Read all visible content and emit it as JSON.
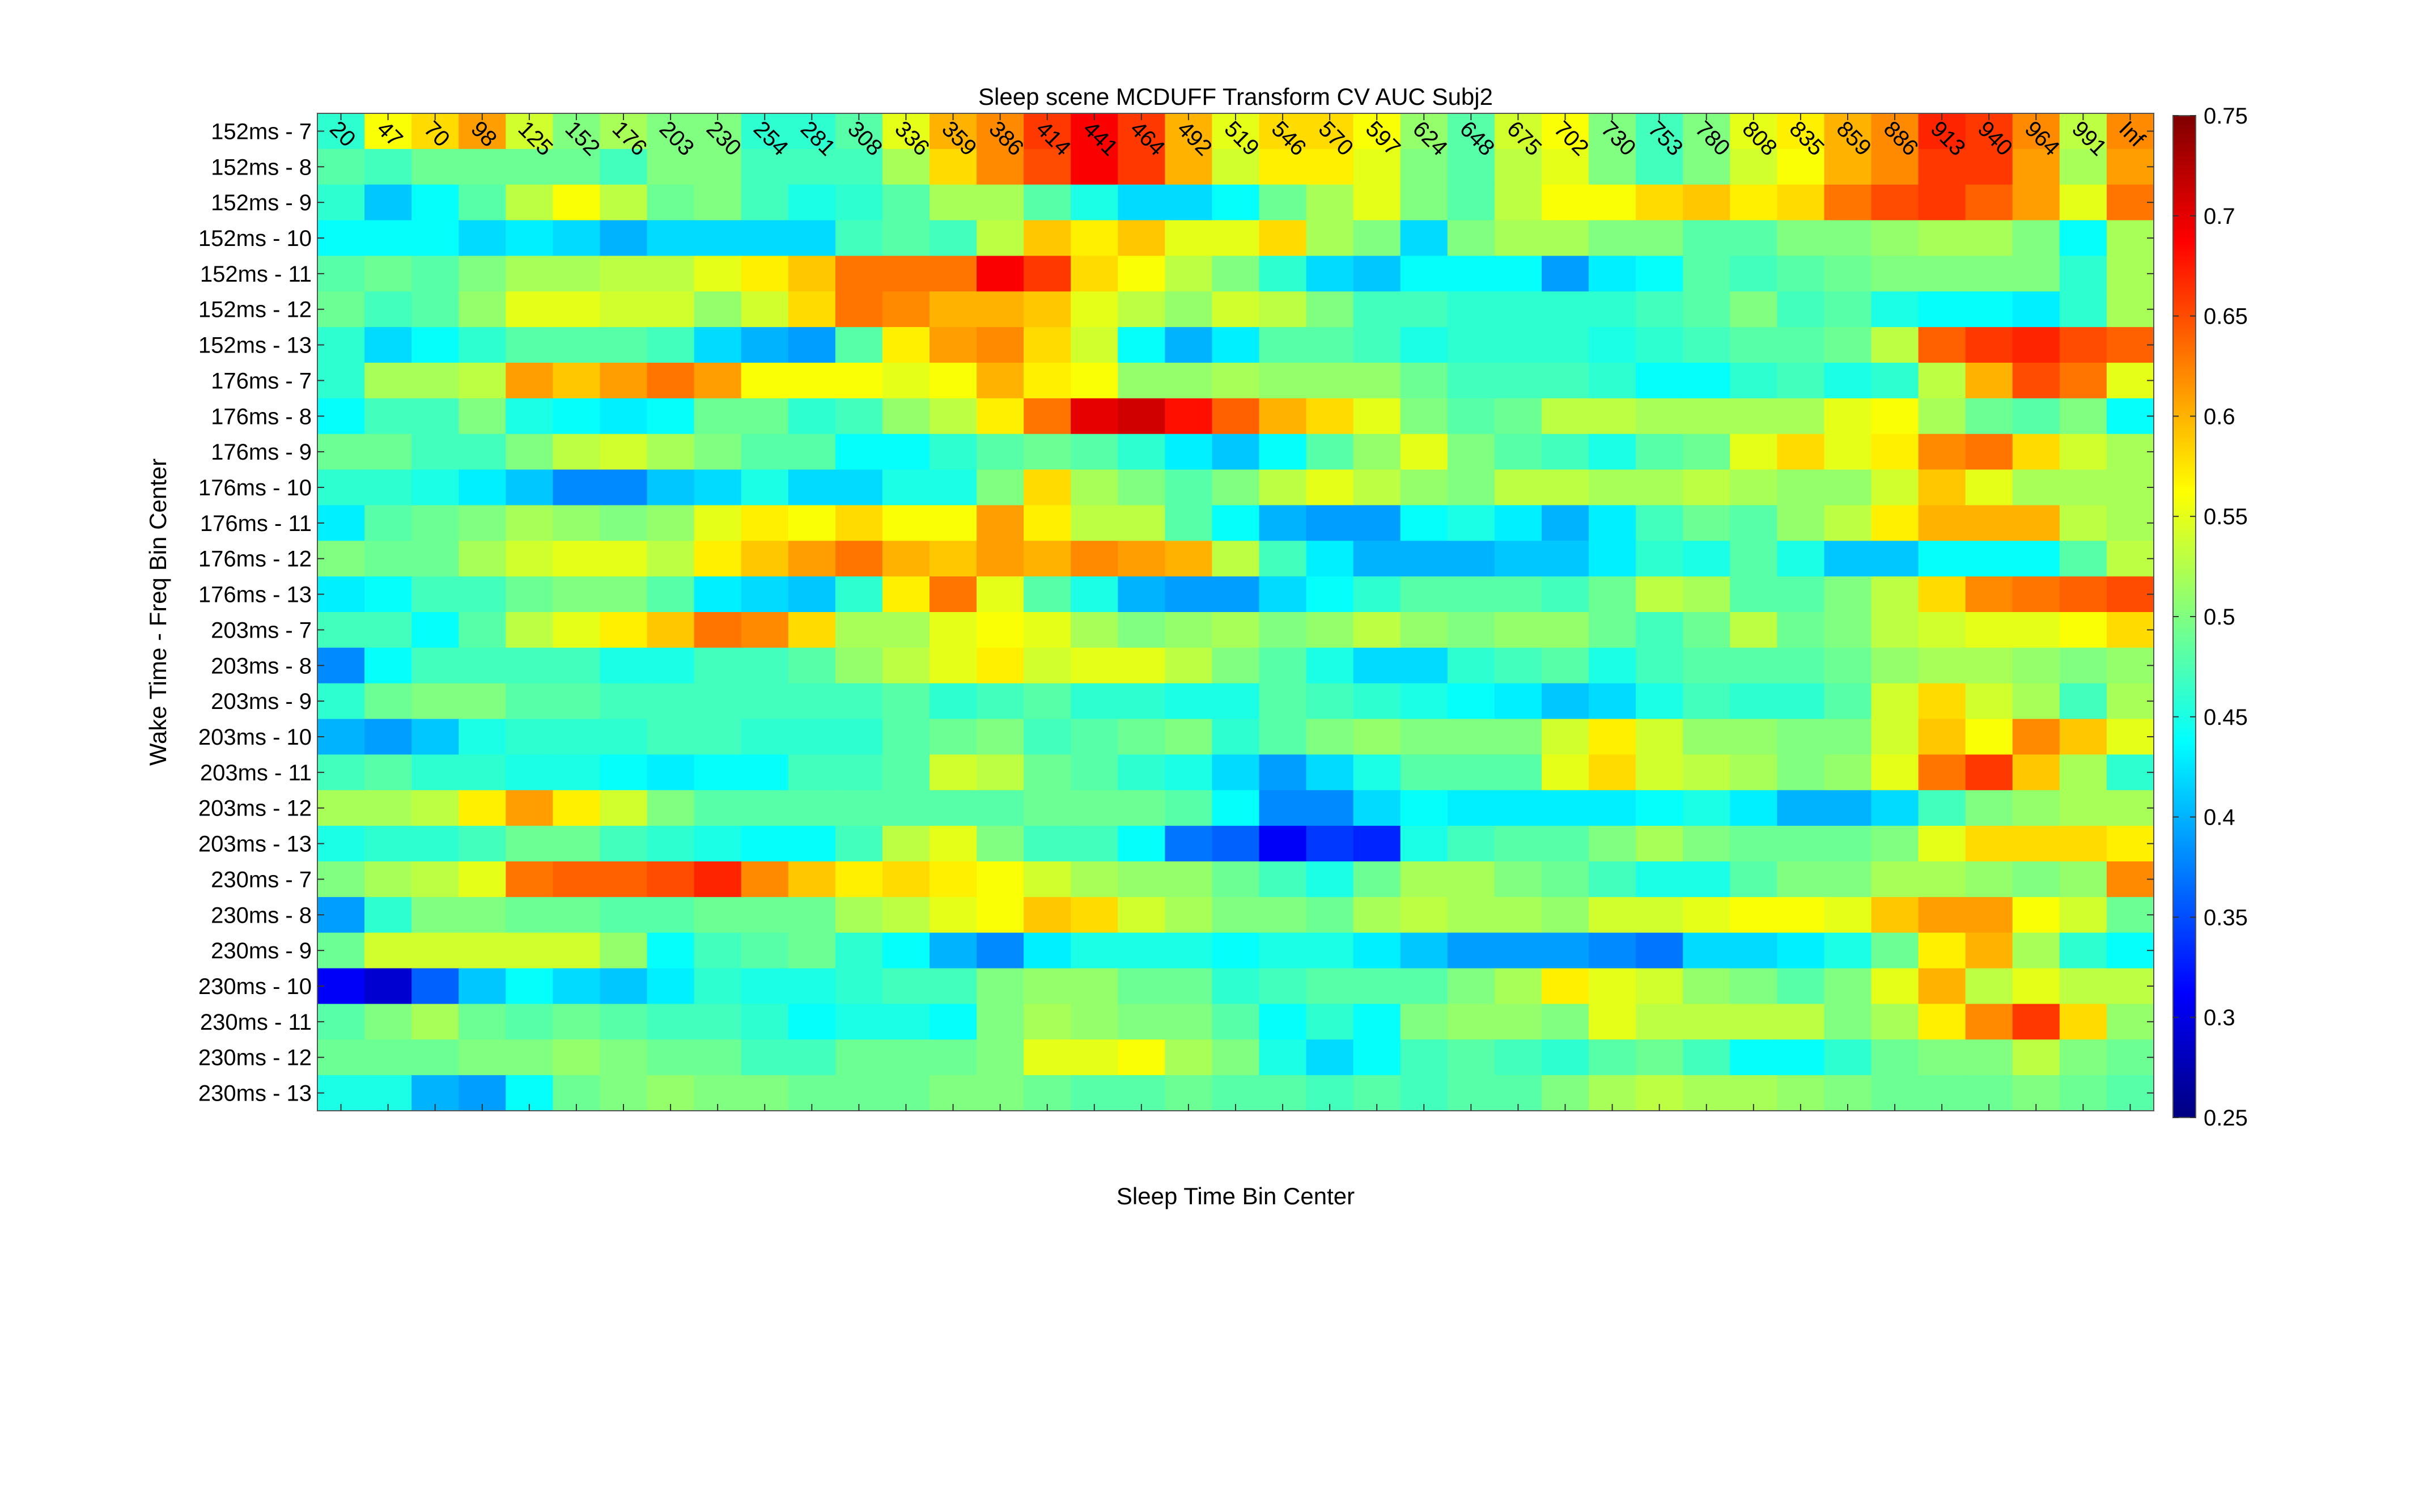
{
  "chart_data": {
    "type": "heatmap",
    "title": "Sleep scene MCDUFF Transform CV AUC Subj2",
    "xlabel": "Sleep Time Bin Center",
    "ylabel": "Wake Time - Freq Bin Center",
    "x_tick_labels": [
      "20",
      "47",
      "70",
      "98",
      "125",
      "152",
      "176",
      "203",
      "230",
      "254",
      "281",
      "308",
      "336",
      "359",
      "386",
      "414",
      "441",
      "464",
      "492",
      "519",
      "546",
      "570",
      "597",
      "624",
      "648",
      "675",
      "702",
      "730",
      "753",
      "780",
      "808",
      "835",
      "859",
      "886",
      "913",
      "940",
      "964",
      "991",
      "Inf"
    ],
    "y_tick_labels": [
      "152ms - 7",
      "152ms - 8",
      "152ms - 9",
      "152ms - 10",
      "152ms - 11",
      "152ms - 12",
      "152ms - 13",
      "176ms - 7",
      "176ms - 8",
      "176ms - 9",
      "176ms - 10",
      "176ms - 11",
      "176ms - 12",
      "176ms - 13",
      "203ms - 7",
      "203ms - 8",
      "203ms - 9",
      "203ms - 10",
      "203ms - 11",
      "203ms - 12",
      "203ms - 13",
      "230ms - 7",
      "230ms - 8",
      "230ms - 9",
      "230ms - 10",
      "230ms - 11",
      "230ms - 12",
      "230ms - 13"
    ],
    "colorbar": {
      "colormap": "jet",
      "range": [
        0.25,
        0.75
      ],
      "tick_labels": [
        "0.25",
        "0.3",
        "0.35",
        "0.4",
        "0.45",
        "0.5",
        "0.55",
        "0.6",
        "0.65",
        "0.7",
        "0.75"
      ]
    },
    "grid": false,
    "values": [
      [
        0.46,
        0.56,
        0.58,
        0.61,
        0.54,
        0.5,
        0.52,
        0.5,
        0.5,
        0.46,
        0.46,
        0.48,
        0.55,
        0.6,
        0.62,
        0.66,
        0.69,
        0.66,
        0.6,
        0.55,
        0.58,
        0.58,
        0.56,
        0.51,
        0.48,
        0.54,
        0.56,
        0.5,
        0.47,
        0.5,
        0.55,
        0.57,
        0.6,
        0.62,
        0.67,
        0.66,
        0.62,
        0.53,
        0.62
      ],
      [
        0.48,
        0.47,
        0.49,
        0.49,
        0.49,
        0.49,
        0.47,
        0.5,
        0.5,
        0.47,
        0.47,
        0.47,
        0.52,
        0.58,
        0.62,
        0.65,
        0.69,
        0.66,
        0.6,
        0.54,
        0.57,
        0.57,
        0.55,
        0.5,
        0.48,
        0.53,
        0.55,
        0.5,
        0.47,
        0.5,
        0.54,
        0.56,
        0.6,
        0.62,
        0.66,
        0.66,
        0.61,
        0.52,
        0.61
      ],
      [
        0.46,
        0.41,
        0.44,
        0.48,
        0.53,
        0.56,
        0.53,
        0.49,
        0.5,
        0.47,
        0.45,
        0.46,
        0.48,
        0.52,
        0.52,
        0.48,
        0.45,
        0.42,
        0.42,
        0.44,
        0.49,
        0.52,
        0.55,
        0.5,
        0.48,
        0.53,
        0.56,
        0.56,
        0.58,
        0.59,
        0.57,
        0.58,
        0.63,
        0.65,
        0.66,
        0.64,
        0.61,
        0.55,
        0.63
      ],
      [
        0.44,
        0.44,
        0.44,
        0.42,
        0.43,
        0.42,
        0.4,
        0.42,
        0.42,
        0.42,
        0.42,
        0.47,
        0.48,
        0.47,
        0.53,
        0.59,
        0.57,
        0.59,
        0.55,
        0.55,
        0.58,
        0.52,
        0.5,
        0.42,
        0.5,
        0.52,
        0.52,
        0.5,
        0.5,
        0.48,
        0.48,
        0.5,
        0.5,
        0.51,
        0.52,
        0.52,
        0.5,
        0.44,
        0.52
      ],
      [
        0.48,
        0.49,
        0.48,
        0.5,
        0.52,
        0.52,
        0.53,
        0.53,
        0.55,
        0.57,
        0.59,
        0.63,
        0.63,
        0.63,
        0.69,
        0.66,
        0.58,
        0.56,
        0.53,
        0.5,
        0.46,
        0.42,
        0.41,
        0.44,
        0.44,
        0.44,
        0.39,
        0.43,
        0.44,
        0.48,
        0.47,
        0.48,
        0.49,
        0.5,
        0.5,
        0.5,
        0.5,
        0.46,
        0.52
      ],
      [
        0.49,
        0.47,
        0.48,
        0.51,
        0.55,
        0.55,
        0.54,
        0.54,
        0.51,
        0.54,
        0.58,
        0.63,
        0.62,
        0.6,
        0.6,
        0.59,
        0.55,
        0.53,
        0.51,
        0.54,
        0.53,
        0.5,
        0.47,
        0.47,
        0.46,
        0.46,
        0.46,
        0.46,
        0.47,
        0.48,
        0.5,
        0.47,
        0.48,
        0.45,
        0.44,
        0.44,
        0.43,
        0.46,
        0.52
      ],
      [
        0.46,
        0.42,
        0.44,
        0.46,
        0.48,
        0.48,
        0.48,
        0.47,
        0.42,
        0.4,
        0.39,
        0.48,
        0.57,
        0.61,
        0.62,
        0.58,
        0.54,
        0.44,
        0.4,
        0.43,
        0.48,
        0.48,
        0.47,
        0.45,
        0.46,
        0.46,
        0.46,
        0.45,
        0.46,
        0.47,
        0.48,
        0.48,
        0.49,
        0.53,
        0.64,
        0.66,
        0.67,
        0.65,
        0.64
      ],
      [
        0.46,
        0.52,
        0.52,
        0.53,
        0.61,
        0.59,
        0.61,
        0.63,
        0.61,
        0.56,
        0.56,
        0.56,
        0.55,
        0.56,
        0.6,
        0.57,
        0.56,
        0.51,
        0.51,
        0.52,
        0.51,
        0.51,
        0.51,
        0.49,
        0.47,
        0.47,
        0.47,
        0.46,
        0.44,
        0.44,
        0.46,
        0.47,
        0.45,
        0.46,
        0.53,
        0.6,
        0.65,
        0.63,
        0.55
      ],
      [
        0.44,
        0.47,
        0.47,
        0.5,
        0.45,
        0.44,
        0.43,
        0.44,
        0.49,
        0.49,
        0.46,
        0.47,
        0.51,
        0.53,
        0.57,
        0.63,
        0.7,
        0.71,
        0.68,
        0.64,
        0.6,
        0.58,
        0.55,
        0.5,
        0.48,
        0.49,
        0.53,
        0.53,
        0.52,
        0.52,
        0.52,
        0.52,
        0.55,
        0.56,
        0.52,
        0.49,
        0.48,
        0.5,
        0.44
      ],
      [
        0.49,
        0.49,
        0.47,
        0.47,
        0.5,
        0.53,
        0.54,
        0.52,
        0.5,
        0.48,
        0.48,
        0.44,
        0.44,
        0.46,
        0.48,
        0.49,
        0.48,
        0.46,
        0.43,
        0.41,
        0.44,
        0.48,
        0.51,
        0.55,
        0.5,
        0.48,
        0.47,
        0.45,
        0.48,
        0.49,
        0.55,
        0.58,
        0.55,
        0.57,
        0.62,
        0.63,
        0.58,
        0.54,
        0.52
      ],
      [
        0.46,
        0.46,
        0.45,
        0.43,
        0.41,
        0.38,
        0.38,
        0.41,
        0.42,
        0.45,
        0.42,
        0.42,
        0.45,
        0.45,
        0.5,
        0.58,
        0.52,
        0.5,
        0.48,
        0.5,
        0.53,
        0.55,
        0.53,
        0.51,
        0.5,
        0.53,
        0.53,
        0.52,
        0.52,
        0.53,
        0.52,
        0.51,
        0.51,
        0.54,
        0.59,
        0.55,
        0.52,
        0.52,
        0.52
      ],
      [
        0.43,
        0.48,
        0.49,
        0.5,
        0.52,
        0.51,
        0.5,
        0.51,
        0.55,
        0.57,
        0.56,
        0.58,
        0.56,
        0.56,
        0.61,
        0.57,
        0.53,
        0.53,
        0.48,
        0.44,
        0.4,
        0.39,
        0.39,
        0.44,
        0.45,
        0.43,
        0.4,
        0.43,
        0.47,
        0.49,
        0.48,
        0.51,
        0.53,
        0.57,
        0.6,
        0.6,
        0.6,
        0.53,
        0.52
      ],
      [
        0.5,
        0.49,
        0.49,
        0.52,
        0.54,
        0.55,
        0.55,
        0.53,
        0.57,
        0.59,
        0.61,
        0.63,
        0.6,
        0.59,
        0.61,
        0.6,
        0.62,
        0.61,
        0.6,
        0.53,
        0.47,
        0.43,
        0.4,
        0.4,
        0.4,
        0.41,
        0.41,
        0.43,
        0.46,
        0.45,
        0.48,
        0.45,
        0.41,
        0.41,
        0.44,
        0.44,
        0.44,
        0.48,
        0.53
      ],
      [
        0.43,
        0.44,
        0.47,
        0.47,
        0.49,
        0.5,
        0.5,
        0.48,
        0.43,
        0.42,
        0.41,
        0.46,
        0.57,
        0.63,
        0.55,
        0.48,
        0.45,
        0.4,
        0.39,
        0.39,
        0.42,
        0.44,
        0.46,
        0.48,
        0.48,
        0.48,
        0.47,
        0.49,
        0.53,
        0.52,
        0.48,
        0.48,
        0.5,
        0.53,
        0.58,
        0.62,
        0.63,
        0.64,
        0.65
      ],
      [
        0.47,
        0.47,
        0.44,
        0.48,
        0.53,
        0.55,
        0.57,
        0.59,
        0.63,
        0.62,
        0.58,
        0.52,
        0.52,
        0.55,
        0.56,
        0.55,
        0.52,
        0.5,
        0.51,
        0.52,
        0.5,
        0.51,
        0.53,
        0.51,
        0.5,
        0.51,
        0.51,
        0.49,
        0.47,
        0.49,
        0.53,
        0.49,
        0.5,
        0.53,
        0.54,
        0.55,
        0.55,
        0.56,
        0.58
      ],
      [
        0.38,
        0.44,
        0.47,
        0.47,
        0.47,
        0.47,
        0.45,
        0.45,
        0.47,
        0.47,
        0.48,
        0.51,
        0.53,
        0.55,
        0.57,
        0.54,
        0.55,
        0.55,
        0.53,
        0.5,
        0.48,
        0.45,
        0.42,
        0.42,
        0.46,
        0.47,
        0.48,
        0.45,
        0.47,
        0.48,
        0.48,
        0.48,
        0.49,
        0.51,
        0.52,
        0.52,
        0.51,
        0.5,
        0.51
      ],
      [
        0.46,
        0.49,
        0.5,
        0.5,
        0.48,
        0.48,
        0.47,
        0.47,
        0.47,
        0.47,
        0.47,
        0.47,
        0.48,
        0.46,
        0.47,
        0.48,
        0.46,
        0.46,
        0.45,
        0.45,
        0.48,
        0.47,
        0.46,
        0.45,
        0.44,
        0.43,
        0.41,
        0.42,
        0.45,
        0.47,
        0.46,
        0.46,
        0.48,
        0.54,
        0.58,
        0.54,
        0.52,
        0.47,
        0.52
      ],
      [
        0.4,
        0.39,
        0.41,
        0.45,
        0.46,
        0.46,
        0.46,
        0.47,
        0.47,
        0.46,
        0.46,
        0.46,
        0.48,
        0.49,
        0.5,
        0.47,
        0.48,
        0.49,
        0.5,
        0.46,
        0.48,
        0.5,
        0.51,
        0.5,
        0.5,
        0.5,
        0.54,
        0.57,
        0.54,
        0.51,
        0.51,
        0.5,
        0.5,
        0.54,
        0.59,
        0.56,
        0.62,
        0.59,
        0.55
      ],
      [
        0.47,
        0.48,
        0.46,
        0.46,
        0.45,
        0.45,
        0.44,
        0.43,
        0.44,
        0.44,
        0.47,
        0.47,
        0.48,
        0.54,
        0.53,
        0.49,
        0.48,
        0.46,
        0.45,
        0.42,
        0.39,
        0.42,
        0.45,
        0.48,
        0.48,
        0.48,
        0.55,
        0.58,
        0.54,
        0.53,
        0.52,
        0.5,
        0.51,
        0.55,
        0.63,
        0.66,
        0.59,
        0.52,
        0.46
      ],
      [
        0.52,
        0.52,
        0.53,
        0.57,
        0.61,
        0.57,
        0.54,
        0.5,
        0.48,
        0.48,
        0.48,
        0.48,
        0.48,
        0.48,
        0.48,
        0.49,
        0.49,
        0.49,
        0.48,
        0.44,
        0.38,
        0.38,
        0.42,
        0.44,
        0.43,
        0.43,
        0.43,
        0.43,
        0.44,
        0.45,
        0.43,
        0.4,
        0.4,
        0.42,
        0.47,
        0.5,
        0.51,
        0.52,
        0.52
      ],
      [
        0.45,
        0.46,
        0.46,
        0.47,
        0.49,
        0.49,
        0.47,
        0.46,
        0.45,
        0.44,
        0.44,
        0.47,
        0.53,
        0.55,
        0.5,
        0.47,
        0.47,
        0.44,
        0.37,
        0.36,
        0.31,
        0.34,
        0.33,
        0.45,
        0.47,
        0.48,
        0.48,
        0.5,
        0.52,
        0.5,
        0.49,
        0.49,
        0.49,
        0.5,
        0.55,
        0.58,
        0.58,
        0.58,
        0.57
      ],
      [
        0.5,
        0.52,
        0.53,
        0.55,
        0.63,
        0.64,
        0.64,
        0.65,
        0.67,
        0.62,
        0.59,
        0.57,
        0.58,
        0.57,
        0.56,
        0.54,
        0.52,
        0.51,
        0.51,
        0.49,
        0.47,
        0.45,
        0.49,
        0.52,
        0.52,
        0.5,
        0.49,
        0.47,
        0.45,
        0.45,
        0.48,
        0.5,
        0.5,
        0.52,
        0.52,
        0.51,
        0.5,
        0.51,
        0.62
      ],
      [
        0.39,
        0.46,
        0.5,
        0.5,
        0.49,
        0.49,
        0.48,
        0.48,
        0.49,
        0.49,
        0.49,
        0.52,
        0.53,
        0.55,
        0.56,
        0.59,
        0.58,
        0.54,
        0.52,
        0.5,
        0.5,
        0.49,
        0.52,
        0.53,
        0.52,
        0.52,
        0.51,
        0.54,
        0.54,
        0.55,
        0.56,
        0.56,
        0.55,
        0.59,
        0.61,
        0.61,
        0.56,
        0.54,
        0.49
      ],
      [
        0.49,
        0.54,
        0.54,
        0.54,
        0.54,
        0.54,
        0.51,
        0.44,
        0.47,
        0.48,
        0.49,
        0.46,
        0.44,
        0.4,
        0.38,
        0.43,
        0.45,
        0.45,
        0.45,
        0.44,
        0.45,
        0.45,
        0.43,
        0.41,
        0.39,
        0.39,
        0.39,
        0.38,
        0.37,
        0.42,
        0.42,
        0.43,
        0.45,
        0.49,
        0.57,
        0.6,
        0.52,
        0.46,
        0.44
      ],
      [
        0.31,
        0.29,
        0.36,
        0.41,
        0.44,
        0.42,
        0.41,
        0.43,
        0.46,
        0.45,
        0.45,
        0.46,
        0.47,
        0.47,
        0.5,
        0.51,
        0.51,
        0.49,
        0.49,
        0.46,
        0.47,
        0.48,
        0.48,
        0.48,
        0.5,
        0.52,
        0.57,
        0.55,
        0.54,
        0.51,
        0.5,
        0.48,
        0.5,
        0.55,
        0.6,
        0.53,
        0.55,
        0.53,
        0.53
      ],
      [
        0.48,
        0.5,
        0.52,
        0.49,
        0.48,
        0.49,
        0.48,
        0.47,
        0.47,
        0.46,
        0.44,
        0.45,
        0.45,
        0.44,
        0.5,
        0.52,
        0.51,
        0.5,
        0.5,
        0.48,
        0.44,
        0.46,
        0.44,
        0.5,
        0.51,
        0.51,
        0.5,
        0.55,
        0.53,
        0.53,
        0.53,
        0.53,
        0.5,
        0.52,
        0.57,
        0.62,
        0.66,
        0.58,
        0.51
      ],
      [
        0.49,
        0.49,
        0.49,
        0.5,
        0.5,
        0.51,
        0.5,
        0.49,
        0.49,
        0.47,
        0.47,
        0.49,
        0.49,
        0.49,
        0.5,
        0.55,
        0.55,
        0.56,
        0.52,
        0.5,
        0.45,
        0.42,
        0.44,
        0.47,
        0.48,
        0.47,
        0.46,
        0.48,
        0.49,
        0.47,
        0.44,
        0.44,
        0.46,
        0.49,
        0.5,
        0.5,
        0.53,
        0.5,
        0.49
      ],
      [
        0.45,
        0.45,
        0.4,
        0.39,
        0.44,
        0.49,
        0.5,
        0.51,
        0.5,
        0.5,
        0.49,
        0.49,
        0.49,
        0.5,
        0.5,
        0.49,
        0.48,
        0.48,
        0.49,
        0.48,
        0.48,
        0.47,
        0.48,
        0.47,
        0.48,
        0.48,
        0.5,
        0.52,
        0.53,
        0.52,
        0.52,
        0.51,
        0.5,
        0.49,
        0.49,
        0.49,
        0.5,
        0.49,
        0.48
      ]
    ]
  }
}
